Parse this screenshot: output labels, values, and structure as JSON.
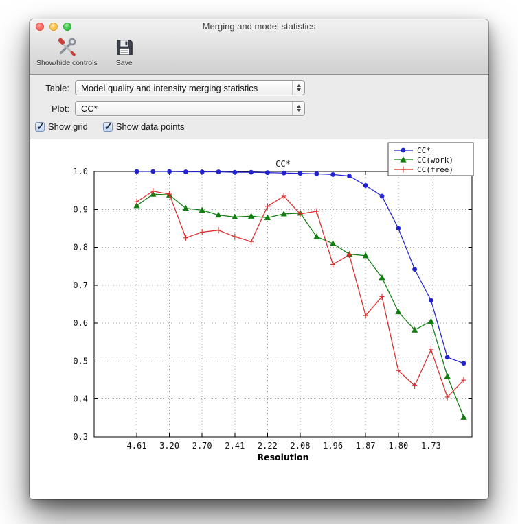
{
  "window": {
    "title": "Merging and model statistics"
  },
  "toolbar": {
    "items": [
      {
        "label": "Show/hide controls",
        "icon": "tools-icon"
      },
      {
        "label": "Save",
        "icon": "save-icon"
      }
    ]
  },
  "controls": {
    "table": {
      "label": "Table:",
      "value": "Model quality and intensity merging statistics"
    },
    "plot": {
      "label": "Plot:",
      "value": "CC*"
    },
    "checkboxes": [
      {
        "label": "Show grid",
        "checked": true
      },
      {
        "label": "Show data points",
        "checked": true
      }
    ]
  },
  "chart_data": {
    "type": "line",
    "title": "CC*",
    "xlabel": "Resolution",
    "ylabel": "",
    "ylim": [
      0.3,
      1.0
    ],
    "yticks": [
      0.3,
      0.4,
      0.5,
      0.6,
      0.7,
      0.8,
      0.9,
      1.0
    ],
    "xtick_labels": [
      "4.61",
      "3.20",
      "2.70",
      "2.41",
      "2.22",
      "2.08",
      "1.96",
      "1.87",
      "1.80",
      "1.73"
    ],
    "xtick_indices": [
      0,
      2,
      4,
      6,
      8,
      10,
      12,
      14,
      16,
      18
    ],
    "grid": true,
    "show_data_points": true,
    "legend_position": "top-right",
    "series": [
      {
        "name": "CC*",
        "color": "#2323cd",
        "marker": "circle",
        "values": [
          1.0,
          1.0,
          1.0,
          0.999,
          0.999,
          0.999,
          0.998,
          0.998,
          0.997,
          0.996,
          0.995,
          0.994,
          0.992,
          0.988,
          0.963,
          0.935,
          0.85,
          0.742,
          0.66,
          0.51,
          0.494
        ]
      },
      {
        "name": "CC(work)",
        "color": "#117d11",
        "marker": "triangle",
        "values": [
          0.91,
          0.94,
          0.938,
          0.903,
          0.898,
          0.885,
          0.88,
          0.882,
          0.878,
          0.888,
          0.89,
          0.828,
          0.81,
          0.782,
          0.778,
          0.72,
          0.63,
          0.582,
          0.605,
          0.46,
          0.352
        ]
      },
      {
        "name": "CC(free)",
        "color": "#d92b2b",
        "marker": "plus",
        "values": [
          0.92,
          0.948,
          0.94,
          0.825,
          0.84,
          0.845,
          0.828,
          0.815,
          0.908,
          0.935,
          0.888,
          0.895,
          0.755,
          0.78,
          0.62,
          0.67,
          0.475,
          0.435,
          0.53,
          0.405,
          0.45
        ]
      }
    ]
  }
}
